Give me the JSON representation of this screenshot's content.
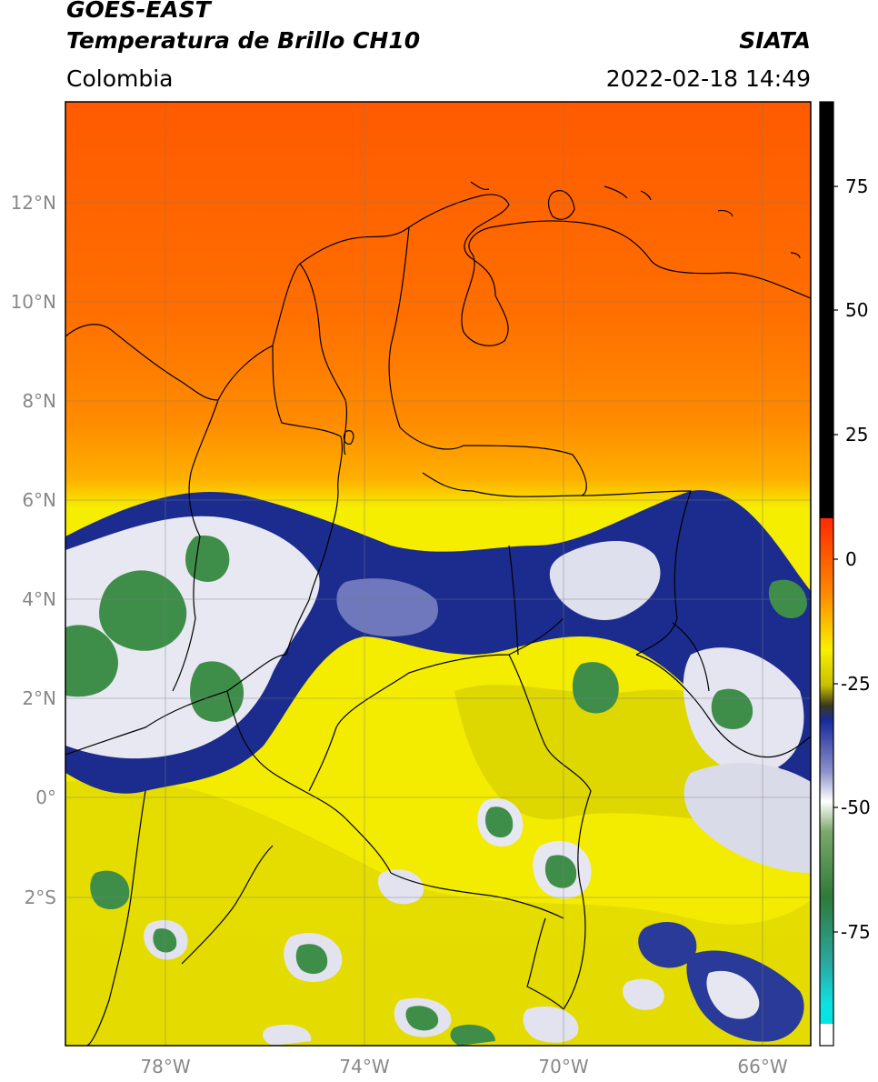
{
  "header": {
    "satellite": "GOES-EAST",
    "product": "Temperatura de Brillo CH10",
    "organization": "SIATA",
    "region": "Colombia",
    "datetime": "2022-02-18 14:49"
  },
  "map": {
    "lat_ticks": [
      "12°N",
      "10°N",
      "8°N",
      "6°N",
      "4°N",
      "2°N",
      "0°",
      "2°S"
    ],
    "lon_ticks": [
      "78°W",
      "74°W",
      "70°W",
      "66°W"
    ],
    "gridlines": true,
    "colors": {
      "warm": "#ff6a00",
      "mid": "#f7ef00",
      "cold_blue": "#1a2a8c",
      "cold_white": "#eef0f6",
      "coldest_green": "#3f8f46"
    }
  },
  "colorbar": {
    "ticks": [
      "75",
      "50",
      "25",
      "0",
      "-25",
      "-50",
      "-75"
    ]
  }
}
